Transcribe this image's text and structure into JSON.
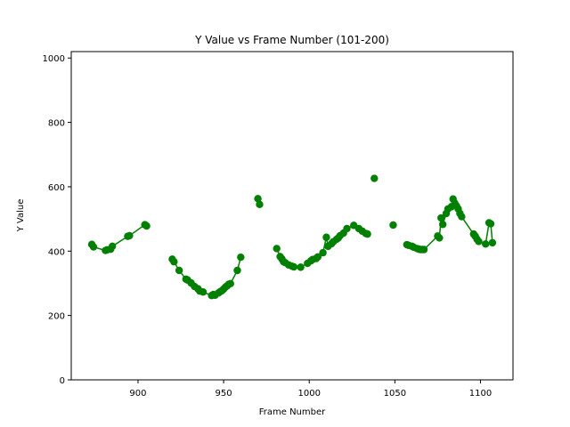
{
  "chart_data": {
    "type": "line",
    "title": "Y Value vs Frame Number (101-200)",
    "xlabel": "Frame Number",
    "ylabel": "Y Value",
    "xlim": [
      861,
      1119
    ],
    "ylim": [
      0,
      1020
    ],
    "xticks": [
      900,
      950,
      1000,
      1050,
      1100
    ],
    "yticks": [
      0,
      200,
      400,
      600,
      800,
      1000
    ],
    "grid": false,
    "legend": "none",
    "color": "#008000",
    "marker": "circle",
    "segments": [
      [
        [
          873,
          421
        ],
        [
          874,
          413
        ],
        [
          881,
          402
        ],
        [
          882,
          404
        ],
        [
          884,
          406
        ],
        [
          885,
          415
        ],
        [
          894,
          446
        ],
        [
          895,
          448
        ],
        [
          904,
          482
        ],
        [
          905,
          478
        ]
      ],
      [
        [
          920,
          375
        ],
        [
          921,
          367
        ],
        [
          924,
          340
        ],
        [
          928,
          313
        ],
        [
          929,
          310
        ],
        [
          931,
          301
        ],
        [
          933,
          290
        ],
        [
          935,
          283
        ],
        [
          936,
          276
        ],
        [
          938,
          273
        ],
        [
          943,
          262
        ],
        [
          944,
          265
        ],
        [
          945,
          263
        ],
        [
          947,
          270
        ],
        [
          948,
          274
        ],
        [
          949,
          277
        ],
        [
          950,
          282
        ],
        [
          951,
          288
        ],
        [
          952,
          292
        ],
        [
          953,
          297
        ],
        [
          954,
          299
        ],
        [
          958,
          340
        ],
        [
          960,
          381
        ]
      ],
      [
        [
          970,
          563
        ],
        [
          971,
          545
        ]
      ],
      [
        [
          981,
          408
        ],
        [
          983,
          383
        ],
        [
          984,
          376
        ],
        [
          985,
          367
        ],
        [
          986,
          364
        ],
        [
          988,
          357
        ],
        [
          990,
          353
        ],
        [
          991,
          351
        ],
        [
          995,
          350
        ],
        [
          999,
          362
        ],
        [
          1001,
          370
        ],
        [
          1002,
          374
        ],
        [
          1004,
          377
        ],
        [
          1005,
          382
        ],
        [
          1008,
          395
        ],
        [
          1010,
          443
        ],
        [
          1011,
          415
        ],
        [
          1013,
          423
        ],
        [
          1014,
          429
        ],
        [
          1016,
          437
        ],
        [
          1017,
          441
        ],
        [
          1018,
          448
        ],
        [
          1020,
          456
        ],
        [
          1022,
          470
        ],
        [
          1026,
          480
        ],
        [
          1029,
          470
        ],
        [
          1031,
          462
        ],
        [
          1033,
          455
        ],
        [
          1034,
          453
        ]
      ],
      [
        [
          1038,
          626
        ]
      ],
      [
        [
          1049,
          481
        ]
      ],
      [
        [
          1057,
          420
        ],
        [
          1058,
          418
        ],
        [
          1060,
          415
        ],
        [
          1061,
          412
        ],
        [
          1063,
          408
        ],
        [
          1064,
          406
        ],
        [
          1065,
          405
        ],
        [
          1066,
          405
        ],
        [
          1067,
          405
        ],
        [
          1075,
          447
        ],
        [
          1076,
          441
        ],
        [
          1077,
          503
        ],
        [
          1078,
          483
        ],
        [
          1080,
          517
        ],
        [
          1081,
          531
        ],
        [
          1083,
          538
        ],
        [
          1084,
          562
        ],
        [
          1085,
          549
        ],
        [
          1086,
          540
        ],
        [
          1087,
          531
        ],
        [
          1088,
          517
        ],
        [
          1089,
          507
        ],
        [
          1096,
          453
        ],
        [
          1097,
          446
        ],
        [
          1098,
          437
        ],
        [
          1099,
          430
        ],
        [
          1103,
          422
        ],
        [
          1105,
          488
        ],
        [
          1106,
          485
        ],
        [
          1107,
          426
        ]
      ]
    ]
  }
}
